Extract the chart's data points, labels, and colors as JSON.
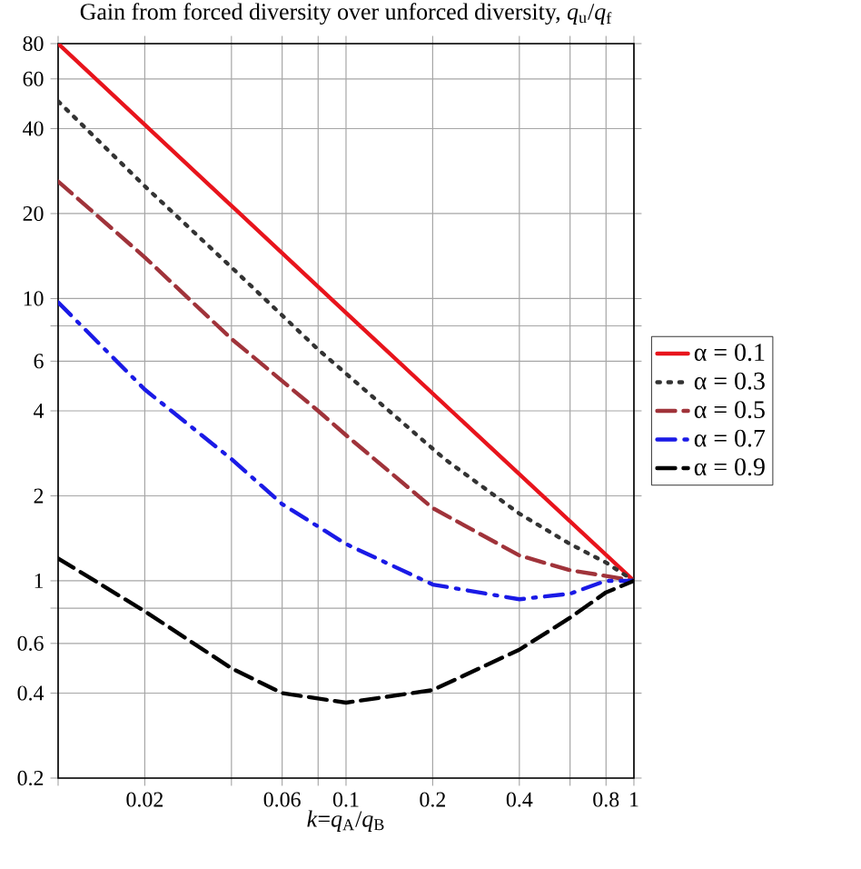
{
  "chart_data": {
    "type": "line",
    "title": "Gain from forced diversity over unforced diversity, *q*$_{u}$/*q*$_{f}$",
    "xlabel": "*k*=*q*$_{A}$/*q*$_{B}$",
    "log": "xy",
    "grid": true,
    "legend": "right",
    "marker": "none",
    "xlim": [
      0.01,
      1
    ],
    "ylim": [
      0.2,
      80
    ],
    "xticks": [
      {
        "value": 0.01,
        "label": null
      },
      0.02,
      {
        "value": 0.04,
        "label": null
      },
      0.06,
      {
        "value": 0.08,
        "label": null
      },
      0.1,
      0.2,
      0.4,
      {
        "value": 0.6,
        "label": null
      },
      0.8,
      1
    ],
    "yticks": [
      0.2,
      0.4,
      0.6,
      {
        "value": 0.8,
        "label": null
      },
      1,
      2,
      4,
      6,
      {
        "value": 8,
        "label": null
      },
      10,
      20,
      40,
      60,
      80
    ],
    "series": [
      {
        "name": "α = 0.1",
        "color": "#e8141c",
        "line_style": "solid",
        "x": [
          0.01,
          0.1,
          1
        ],
        "values": [
          80,
          8.9,
          1
        ]
      },
      {
        "name": "α = 0.3",
        "color": "#333333",
        "line_style": "dotted",
        "x": [
          0.01,
          0.02,
          0.04,
          0.08,
          0.22,
          0.4,
          0.6,
          0.8,
          1
        ],
        "values": [
          50,
          25,
          12.9,
          6.6,
          2.7,
          1.73,
          1.35,
          1.16,
          1
        ]
      },
      {
        "name": "α = 0.5",
        "color": "#a0333a",
        "line_style": "dashed",
        "x": [
          0.01,
          0.02,
          0.04,
          0.08,
          0.1,
          0.2,
          0.4,
          0.6,
          0.8,
          1
        ],
        "values": [
          26,
          14,
          7.2,
          4.0,
          3.28,
          1.81,
          1.23,
          1.09,
          1.04,
          1
        ]
      },
      {
        "name": "α = 0.7",
        "color": "#1a1ae6",
        "line_style": "dashdot",
        "x": [
          0.01,
          0.02,
          0.024,
          0.04,
          0.06,
          0.1,
          0.2,
          0.4,
          0.6,
          0.8,
          1
        ],
        "values": [
          9.7,
          4.76,
          4.1,
          2.7,
          1.87,
          1.35,
          0.97,
          0.86,
          0.9,
          1.0,
          1
        ]
      },
      {
        "name": "α = 0.9",
        "color": "#000000",
        "line_style": "dashed",
        "x": [
          0.01,
          0.02,
          0.04,
          0.06,
          0.1,
          0.2,
          0.4,
          0.6,
          0.8,
          1
        ],
        "values": [
          1.2,
          0.78,
          0.49,
          0.4,
          0.37,
          0.41,
          0.57,
          0.74,
          0.91,
          1
        ]
      }
    ]
  }
}
